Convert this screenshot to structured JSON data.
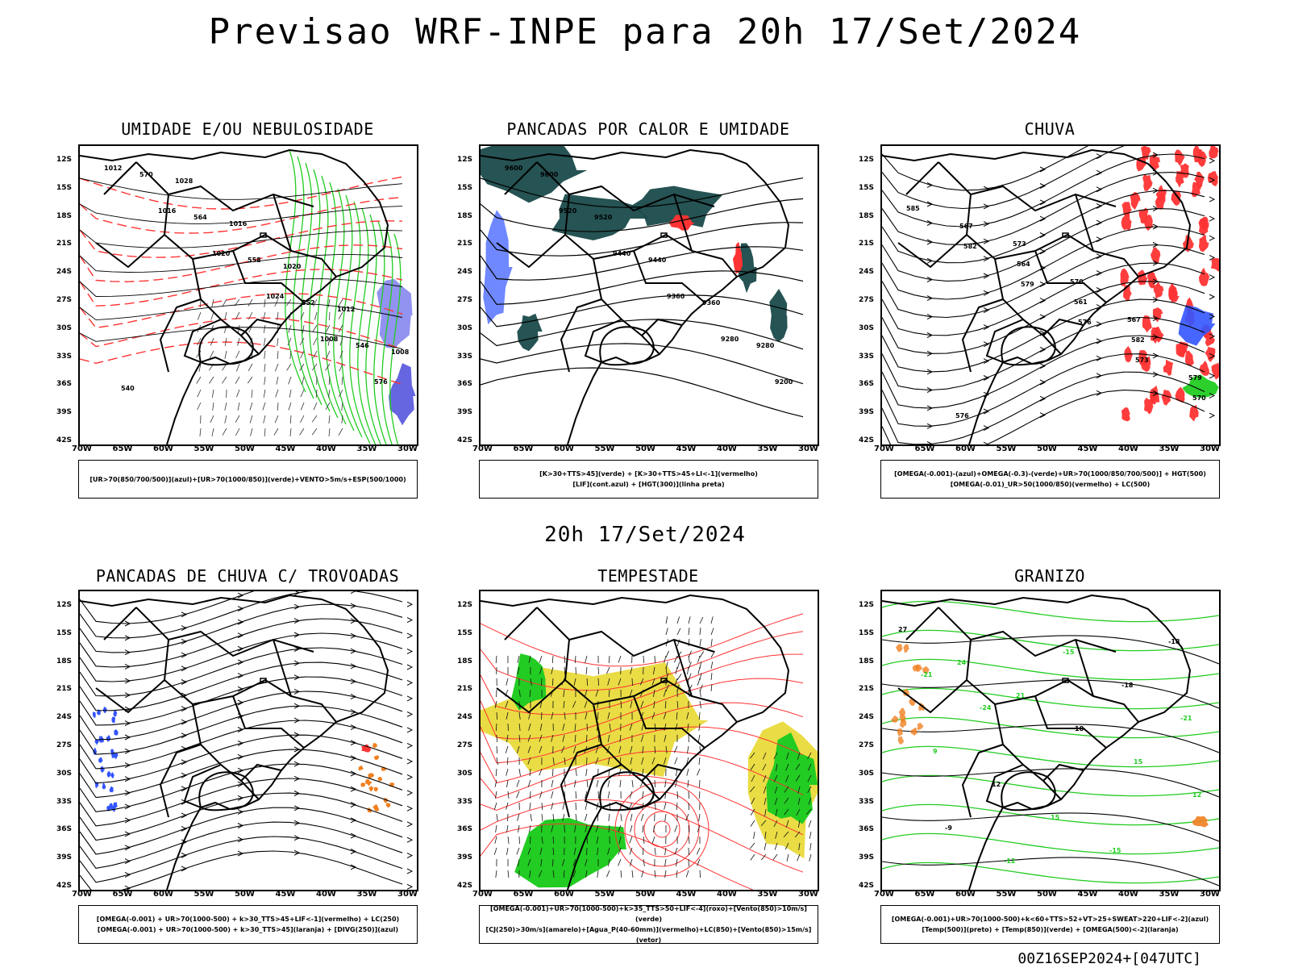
{
  "title": "Previsao WRF-INPE  para 20h 17/Set/2024",
  "mid_date": "20h 17/Set/2024",
  "footer": "00Z16SEP2024+[047UTC]",
  "lat_ticks": [
    "12S",
    "15S",
    "18S",
    "21S",
    "24S",
    "27S",
    "30S",
    "33S",
    "36S",
    "39S",
    "42S"
  ],
  "lon_ticks": [
    "70W",
    "65W",
    "60W",
    "55W",
    "50W",
    "45W",
    "40W",
    "35W",
    "30W"
  ],
  "colors": {
    "red": "#ff3333",
    "green": "#22cc22",
    "blue": "#3355ff",
    "teal": "#1a4a4a",
    "yellow": "#e8d830",
    "orange": "#f08020"
  },
  "panels": [
    {
      "title": "UMIDADE E/OU NEBULOSIDADE",
      "legend": [
        "[UR>70(850/700/500)](azul)+[UR>70(1000/850)](verde)+VENTO>5m/s+ESP(500/1000)"
      ],
      "contour_labels": [
        "1012",
        "1016",
        "1020",
        "1024",
        "1008",
        "576",
        "570",
        "564",
        "558",
        "552",
        "546",
        "540",
        "1028",
        "1016",
        "1020",
        "1012",
        "1008"
      ]
    },
    {
      "title": "PANCADAS POR CALOR E UMIDADE",
      "legend": [
        "[K>30+TTS>45](verde) + [K>30+TTS>45+LI<-1](vermelho)",
        "[LIF](cont.azul) + [HGT(300)](linha preta)"
      ],
      "contour_labels": [
        "9600",
        "9520",
        "9440",
        "9360",
        "9280",
        "9200",
        "9600",
        "9520",
        "9440",
        "9360",
        "9280"
      ]
    },
    {
      "title": "CHUVA",
      "legend": [
        "[OMEGA(-0.001)-(azul)+OMEGA(-0.3)-(verde)+UR>70(1000/850/700/500)] + HGT(500)",
        "[OMEGA(-0.01)_UR>50(1000/850)(vermelho) + LC(500)"
      ],
      "contour_labels": [
        "585",
        "582",
        "579",
        "576",
        "573",
        "570",
        "567",
        "564",
        "561",
        "582",
        "579",
        "576",
        "573",
        "570",
        "567"
      ]
    },
    {
      "title": "PANCADAS DE CHUVA C/ TROVOADAS",
      "legend": [
        "[OMEGA(-0.001) + UR>70(1000-500) + k>30_TTS>45+LIF<-1](vermelho) + LC(250)",
        "[OMEGA(-0.001) + UR>70(1000-500) + k>30_TTS>45](laranja) + [DIVG(250)](azul)"
      ],
      "contour_labels": []
    },
    {
      "title": "TEMPESTADE",
      "legend": [
        "[OMEGA(-0.001)+UR>70(1000-500)+k>35_TTS>50+LIF<-4](roxo)+[Vento(850)>10m/s](verde)",
        "[CJ(250)>30m/s](amarelo)+[Agua_P(40-60mm)](vermelho)+LC(850)+[Vento(850)>15m/s](vetor)"
      ],
      "contour_labels": []
    },
    {
      "title": "GRANIZO",
      "legend": [
        "[OMEGA(-0.001)+UR>70(1000-500)+k<60+TTS>52+VT>25+SWEAT>220+LIF<-2](azul)",
        "[Temp(500)](preto) + [Temp(850)](verde) + [OMEGA(500)<-2](laranja)"
      ],
      "contour_labels": [
        "27",
        "24",
        "21",
        "18",
        "15",
        "12",
        "-9",
        "-12",
        "-15",
        "-18",
        "-21",
        "9",
        "12",
        "15",
        "-15",
        "-18",
        "-21",
        "-24"
      ]
    }
  ]
}
